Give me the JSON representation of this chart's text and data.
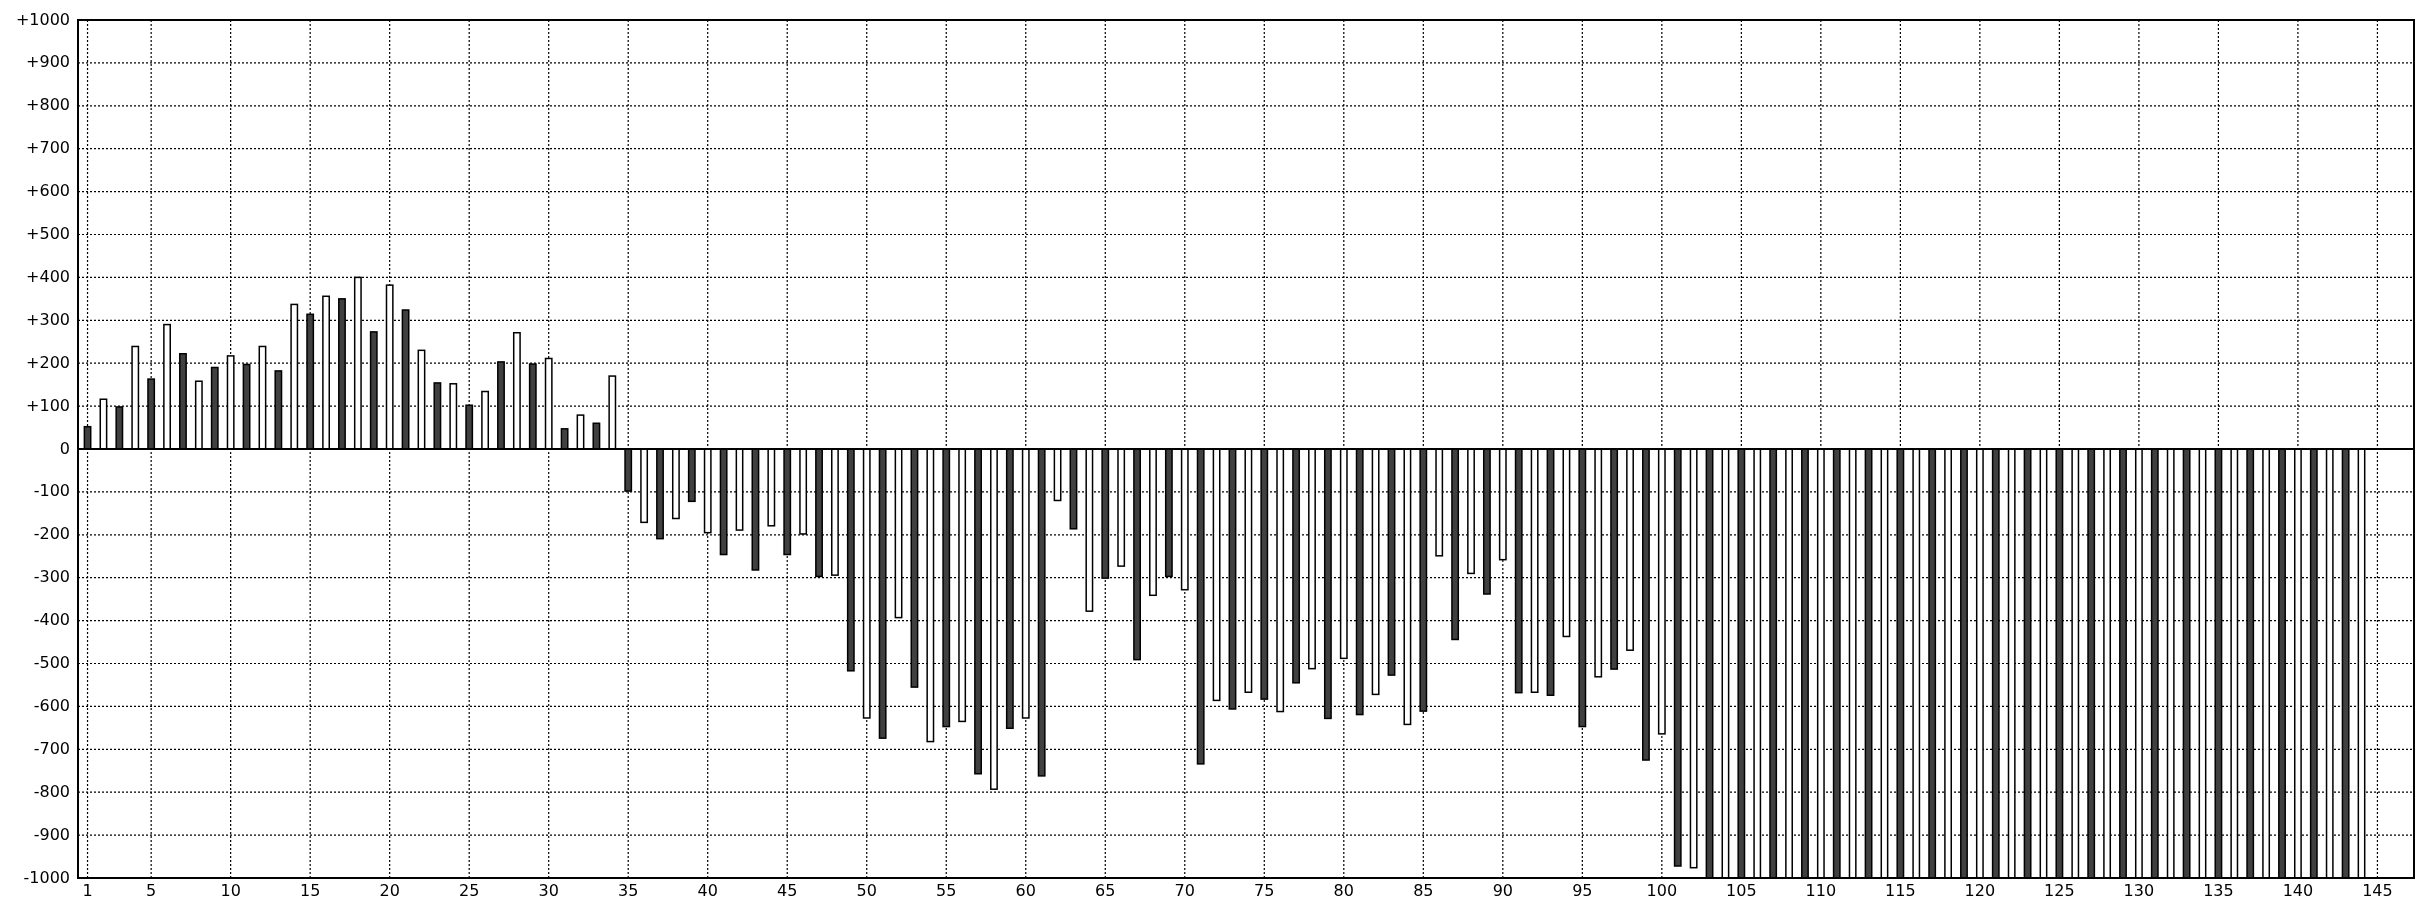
{
  "chart_data": {
    "type": "bar",
    "x": [
      1,
      2,
      3,
      4,
      5,
      6,
      7,
      8,
      9,
      10,
      11,
      12,
      13,
      14,
      15,
      16,
      17,
      18,
      19,
      20,
      21,
      22,
      23,
      24,
      25,
      26,
      27,
      28,
      29,
      30,
      31,
      32,
      33,
      34,
      35,
      36,
      37,
      38,
      39,
      40,
      41,
      42,
      43,
      44,
      45,
      46,
      47,
      48,
      49,
      50,
      51,
      52,
      53,
      54,
      55,
      56,
      57,
      58,
      59,
      60,
      61,
      62,
      63,
      64,
      65,
      66,
      67,
      68,
      69,
      70,
      71,
      72,
      73,
      74,
      75,
      76,
      77,
      78,
      79,
      80,
      81,
      82,
      83,
      84,
      85,
      86,
      87,
      88,
      89,
      90,
      91,
      92,
      93,
      94,
      95,
      96,
      97,
      98,
      99,
      100,
      101,
      102,
      103,
      104,
      105,
      106,
      107,
      108,
      109,
      110,
      111,
      112,
      113,
      114,
      115,
      116,
      117,
      118,
      119,
      120,
      121,
      122,
      123,
      124,
      125,
      126,
      127,
      128,
      129,
      130,
      131,
      132,
      133,
      134,
      135,
      136,
      137,
      138,
      139,
      140,
      141,
      142,
      143,
      144
    ],
    "values": [
      52,
      116,
      98,
      239,
      163,
      290,
      222,
      158,
      190,
      217,
      197,
      239,
      182,
      337,
      314,
      356,
      350,
      400,
      273,
      382,
      324,
      230,
      154,
      152,
      102,
      134,
      203,
      271,
      198,
      211,
      47,
      79,
      60,
      170,
      -98,
      -171,
      -209,
      -162,
      -122,
      -195,
      -246,
      -189,
      -282,
      -179,
      -246,
      -198,
      -297,
      -294,
      -517,
      -627,
      -674,
      -393,
      -555,
      -682,
      -647,
      -635,
      -757,
      -793,
      -651,
      -627,
      -762,
      -120,
      -186,
      -378,
      -301,
      -273,
      -491,
      -341,
      -297,
      -328,
      -734,
      -586,
      -606,
      -567,
      -583,
      -612,
      -545,
      -512,
      -628,
      -488,
      -619,
      -572,
      -527,
      -642,
      -611,
      -249,
      -444,
      -290,
      -338,
      -258,
      -568,
      -567,
      -574,
      -437,
      -647,
      -531,
      -513,
      -469,
      -725,
      -664,
      -972,
      -976,
      -1000,
      -1000,
      -1000,
      -1000,
      -1000,
      -1000,
      -1000,
      -1000,
      -1000,
      -1000,
      -1000,
      -1000,
      -1000,
      -1000,
      -1000,
      -1000,
      -1000,
      -1000,
      -1000,
      -1000,
      -1000,
      -1000,
      -1000,
      -1000,
      -1000,
      -1000,
      -1000,
      -1000,
      -1000,
      -1000,
      -1000,
      -1000,
      -1000,
      -1000,
      -1000,
      -1000,
      -1000,
      -1000,
      -1000,
      -1000,
      -1000,
      -1000
    ],
    "colors": [
      "#404040",
      "#ffffff",
      "#404040",
      "#ffffff",
      "#404040",
      "#ffffff",
      "#404040",
      "#ffffff",
      "#404040",
      "#ffffff",
      "#404040",
      "#ffffff",
      "#404040",
      "#ffffff",
      "#404040",
      "#ffffff",
      "#404040",
      "#ffffff",
      "#404040",
      "#ffffff",
      "#404040",
      "#ffffff",
      "#404040",
      "#ffffff",
      "#404040",
      "#ffffff",
      "#404040",
      "#ffffff",
      "#404040",
      "#ffffff",
      "#404040",
      "#ffffff",
      "#404040",
      "#ffffff",
      "#404040",
      "#ffffff",
      "#404040",
      "#ffffff",
      "#404040",
      "#ffffff",
      "#404040",
      "#ffffff",
      "#404040",
      "#ffffff",
      "#404040",
      "#ffffff",
      "#404040",
      "#ffffff",
      "#404040",
      "#ffffff",
      "#404040",
      "#ffffff",
      "#404040",
      "#ffffff",
      "#404040",
      "#ffffff",
      "#404040",
      "#ffffff",
      "#404040",
      "#ffffff",
      "#404040",
      "#ffffff",
      "#404040",
      "#ffffff",
      "#404040",
      "#ffffff",
      "#404040",
      "#ffffff",
      "#404040",
      "#ffffff",
      "#404040",
      "#ffffff",
      "#404040",
      "#ffffff",
      "#404040",
      "#ffffff",
      "#404040",
      "#ffffff",
      "#404040",
      "#ffffff",
      "#404040",
      "#ffffff",
      "#404040",
      "#ffffff",
      "#404040",
      "#ffffff",
      "#404040",
      "#ffffff",
      "#404040",
      "#ffffff",
      "#404040",
      "#ffffff",
      "#404040",
      "#ffffff",
      "#404040",
      "#ffffff",
      "#404040",
      "#ffffff",
      "#404040",
      "#ffffff",
      "#404040",
      "#ffffff",
      "#404040",
      "#ffffff",
      "#404040",
      "#ffffff",
      "#404040",
      "#ffffff",
      "#404040",
      "#ffffff",
      "#404040",
      "#ffffff",
      "#404040",
      "#ffffff",
      "#404040",
      "#ffffff",
      "#404040",
      "#ffffff",
      "#404040",
      "#ffffff",
      "#404040",
      "#ffffff",
      "#404040",
      "#ffffff",
      "#404040",
      "#ffffff",
      "#404040",
      "#ffffff",
      "#404040",
      "#ffffff",
      "#404040",
      "#ffffff",
      "#404040",
      "#ffffff",
      "#404040",
      "#ffffff",
      "#404040",
      "#ffffff",
      "#404040",
      "#ffffff",
      "#404040",
      "#ffffff",
      "#404040",
      "#ffffff"
    ],
    "xlim": [
      0.4,
      147.3
    ],
    "xticks": [
      1,
      5,
      10,
      15,
      20,
      25,
      30,
      35,
      40,
      45,
      50,
      55,
      60,
      65,
      70,
      75,
      80,
      85,
      90,
      95,
      100,
      105,
      110,
      115,
      120,
      125,
      130,
      135,
      140,
      145
    ],
    "ylim": [
      -1000,
      1000
    ],
    "yticks": [
      {
        "value": -1000,
        "label": "-1000"
      },
      {
        "value": -900,
        "label": "-900"
      },
      {
        "value": -800,
        "label": "-800"
      },
      {
        "value": -700,
        "label": "-700"
      },
      {
        "value": -600,
        "label": "-600"
      },
      {
        "value": -500,
        "label": "-500"
      },
      {
        "value": -400,
        "label": "-400"
      },
      {
        "value": -300,
        "label": "-300"
      },
      {
        "value": -200,
        "label": "-200"
      },
      {
        "value": -100,
        "label": "-100"
      },
      {
        "value": 0,
        "label": "0"
      },
      {
        "value": 100,
        "label": "+100"
      },
      {
        "value": 200,
        "label": "+200"
      },
      {
        "value": 300,
        "label": "+300"
      },
      {
        "value": 400,
        "label": "+400"
      },
      {
        "value": 500,
        "label": "+500"
      },
      {
        "value": 600,
        "label": "+600"
      },
      {
        "value": 700,
        "label": "+700"
      },
      {
        "value": 800,
        "label": "+800"
      },
      {
        "value": 900,
        "label": "+900"
      },
      {
        "value": 1000,
        "label": "+1000"
      }
    ],
    "grid": true
  }
}
